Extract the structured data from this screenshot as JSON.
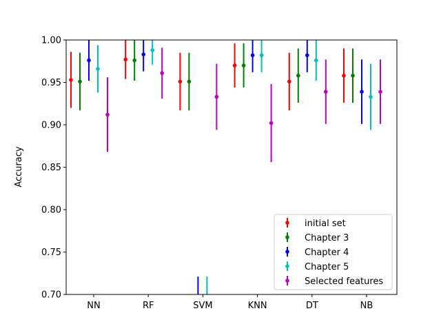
{
  "chart_data": {
    "type": "errorbar",
    "ylabel": "Accuracy",
    "xlabel": "",
    "ylim": [
      0.7,
      1.0
    ],
    "yticks": [
      "0.70",
      "0.75",
      "0.80",
      "0.85",
      "0.90",
      "0.95",
      "1.00"
    ],
    "categories": [
      "NN",
      "RF",
      "SVM",
      "KNN",
      "DT",
      "NB"
    ],
    "legend_position": "lower-right",
    "series": [
      {
        "name": "initial set",
        "color": "#ff0000",
        "values": [
          0.953,
          0.977,
          0.951,
          0.97,
          0.951,
          0.958
        ],
        "errors": [
          0.033,
          0.023,
          0.034,
          0.026,
          0.034,
          0.032
        ]
      },
      {
        "name": "Chapter 3",
        "color": "#008000",
        "values": [
          0.951,
          0.976,
          0.951,
          0.97,
          0.958,
          0.958
        ],
        "errors": [
          0.034,
          0.024,
          0.034,
          0.026,
          0.032,
          0.032
        ]
      },
      {
        "name": "Chapter 4",
        "color": "#0000ff",
        "values": [
          0.976,
          0.983,
          0.68,
          0.982,
          0.982,
          0.939
        ],
        "errors": [
          0.024,
          0.02,
          0.041,
          0.02,
          0.02,
          0.038
        ]
      },
      {
        "name": "Chapter 5",
        "color": "#00bfbf",
        "values": [
          0.966,
          0.988,
          0.68,
          0.982,
          0.976,
          0.933
        ],
        "errors": [
          0.028,
          0.017,
          0.041,
          0.02,
          0.024,
          0.039
        ]
      },
      {
        "name": "Selected features",
        "color": "#bf00bf",
        "values": [
          0.912,
          0.961,
          0.933,
          0.902,
          0.939,
          0.939
        ],
        "errors": [
          0.044,
          0.03,
          0.039,
          0.046,
          0.038,
          0.038
        ]
      }
    ]
  }
}
